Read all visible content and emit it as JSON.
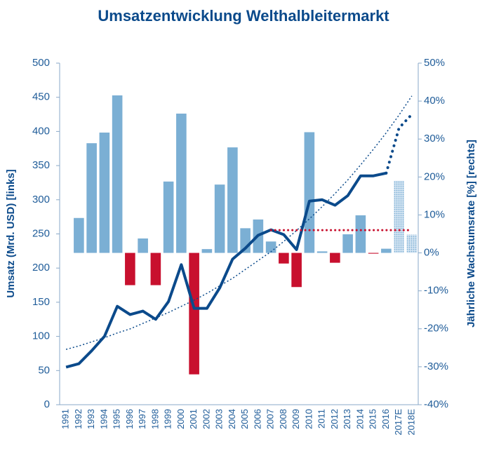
{
  "chart_data": {
    "type": "combo",
    "title": "Umsatzentwicklung Welthalbleitermarkt",
    "ylabel": "Umsatz (Mrd. USD) [links]",
    "y2label": "Jährliche Wachstumsrate [%]  [rechts]",
    "categories": [
      "1991",
      "1992",
      "1993",
      "1994",
      "1995",
      "1996",
      "1997",
      "1998",
      "1999",
      "2000",
      "2001",
      "2002",
      "2003",
      "2004",
      "2005",
      "2006",
      "2007",
      "2008",
      "2009",
      "2010",
      "2011",
      "2012",
      "2013",
      "2014",
      "2015",
      "2016",
      "2017E",
      "2018E"
    ],
    "ylim": [
      0,
      500
    ],
    "yticks": [
      0,
      50,
      100,
      150,
      200,
      250,
      300,
      350,
      400,
      450,
      500
    ],
    "y2lim": [
      -40,
      50
    ],
    "y2ticks": [
      {
        "value": -40,
        "label": "-40%"
      },
      {
        "value": -30,
        "label": "-30%"
      },
      {
        "value": -20,
        "label": "-20%"
      },
      {
        "value": -10,
        "label": "-10%"
      },
      {
        "value": 0,
        "label": "0%"
      },
      {
        "value": 10,
        "label": "10%"
      },
      {
        "value": 20,
        "label": "20%"
      },
      {
        "value": 30,
        "label": "30%"
      },
      {
        "value": 40,
        "label": "40%"
      },
      {
        "value": 50,
        "label": "50%"
      }
    ],
    "estimate_categories": [
      "2017E",
      "2018E"
    ],
    "series": [
      {
        "type": "bar",
        "axis": "y2",
        "color": "#7bafd4",
        "negative_color": "#c8102e",
        "estimate_color": "#a9cbe6",
        "values": [
          null,
          9.2,
          28.9,
          31.7,
          41.5,
          -8.5,
          3.8,
          -8.5,
          18.8,
          36.7,
          -32,
          1.0,
          18,
          27.8,
          6.5,
          8.8,
          3.0,
          -2.8,
          -9,
          31.8,
          0.4,
          -2.6,
          4.9,
          9.9,
          -0.2,
          1.1,
          19,
          4.8
        ]
      },
      {
        "type": "line",
        "axis": "y",
        "color": "#0b4a8b",
        "width": 4,
        "dash": "solid",
        "values": [
          55,
          60,
          79,
          100,
          144,
          132,
          137,
          125,
          151,
          205,
          141,
          141,
          171,
          213,
          229,
          248,
          256,
          249,
          227,
          298,
          300,
          292,
          306,
          335,
          335,
          339,
          null,
          null
        ]
      },
      {
        "type": "line",
        "axis": "y",
        "color": "#0b4a8b",
        "width": 4,
        "dash": "dotted",
        "values": [
          null,
          null,
          null,
          null,
          null,
          null,
          null,
          null,
          null,
          null,
          null,
          null,
          null,
          null,
          null,
          null,
          null,
          null,
          null,
          null,
          null,
          null,
          null,
          null,
          null,
          339,
          405,
          425
        ]
      },
      {
        "type": "line",
        "axis": "y",
        "color": "#0b4a8b",
        "width": 1.5,
        "dash": "dotted",
        "values": [
          81,
          86,
          92,
          98,
          105,
          111,
          119,
          127,
          135,
          144,
          153,
          163,
          174,
          185,
          198,
          211,
          224,
          239,
          255,
          272,
          290,
          309,
          329,
          351,
          374,
          398,
          424,
          452
        ]
      },
      {
        "type": "line",
        "axis": "y2",
        "color": "#c8102e",
        "width": 3,
        "dash": "dotted",
        "values": [
          null,
          null,
          null,
          null,
          null,
          null,
          null,
          null,
          null,
          null,
          null,
          null,
          null,
          null,
          null,
          null,
          6,
          6,
          6,
          6,
          6,
          6,
          6,
          6,
          6,
          6,
          6,
          6
        ]
      }
    ]
  }
}
